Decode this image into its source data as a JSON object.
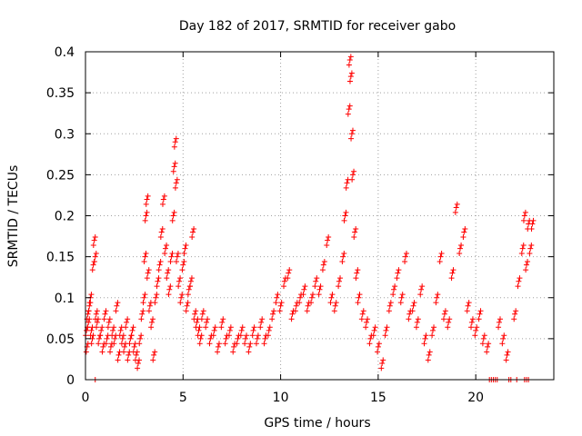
{
  "chart_data": {
    "type": "scatter",
    "title": "Day 182 of 2017, SRMTID for receiver gabo",
    "xlabel": "GPS time / hours",
    "ylabel": "SRMTID / TECUs",
    "xlim": [
      0,
      24
    ],
    "ylim": [
      0,
      0.4
    ],
    "xticks": [
      0,
      5,
      10,
      15,
      20
    ],
    "xtick_labels": [
      "0",
      "5",
      "10",
      "15",
      "20"
    ],
    "yticks": [
      0,
      0.05,
      0.1,
      0.15,
      0.2,
      0.25,
      0.3,
      0.35,
      0.4
    ],
    "ytick_labels": [
      "0",
      "0.05",
      "0.1",
      "0.15",
      "0.2",
      "0.25",
      "0.3",
      "0.35",
      "0.4"
    ],
    "grid": true,
    "marker": "+",
    "colors": {
      "series": "#ff0000",
      "grid": "#a0a0a0",
      "axis": "#000000"
    },
    "series": [
      {
        "name": "SRMTID",
        "points": [
          [
            0.05,
            0.06
          ],
          [
            0.08,
            0.04
          ],
          [
            0.12,
            0.08
          ],
          [
            0.15,
            0.07
          ],
          [
            0.2,
            0.09
          ],
          [
            0.25,
            0.1
          ],
          [
            0.3,
            0.06
          ],
          [
            0.35,
            0.05
          ],
          [
            0.4,
            0.14
          ],
          [
            0.45,
            0.17
          ],
          [
            0.5,
            0.15
          ],
          [
            0.55,
            0.08
          ],
          [
            0.6,
            0.07
          ],
          [
            0.7,
            0.05
          ],
          [
            0.8,
            0.06
          ],
          [
            0.9,
            0.04
          ],
          [
            1.0,
            0.08
          ],
          [
            1.1,
            0.05
          ],
          [
            1.2,
            0.07
          ],
          [
            1.3,
            0.04
          ],
          [
            1.4,
            0.06
          ],
          [
            1.5,
            0.05
          ],
          [
            1.6,
            0.09
          ],
          [
            1.7,
            0.03
          ],
          [
            1.8,
            0.06
          ],
          [
            1.9,
            0.05
          ],
          [
            2.0,
            0.04
          ],
          [
            2.1,
            0.07
          ],
          [
            2.2,
            0.03
          ],
          [
            2.3,
            0.05
          ],
          [
            2.4,
            0.06
          ],
          [
            2.5,
            0.04
          ],
          [
            2.6,
            0.03
          ],
          [
            2.7,
            0.02
          ],
          [
            2.8,
            0.05
          ],
          [
            2.9,
            0.08
          ],
          [
            3.0,
            0.1
          ],
          [
            3.05,
            0.15
          ],
          [
            3.1,
            0.2
          ],
          [
            3.15,
            0.22
          ],
          [
            3.2,
            0.13
          ],
          [
            3.3,
            0.09
          ],
          [
            3.4,
            0.07
          ],
          [
            3.5,
            0.03
          ],
          [
            3.6,
            0.1
          ],
          [
            3.7,
            0.12
          ],
          [
            3.8,
            0.14
          ],
          [
            3.9,
            0.18
          ],
          [
            4.0,
            0.22
          ],
          [
            4.1,
            0.16
          ],
          [
            4.2,
            0.13
          ],
          [
            4.3,
            0.11
          ],
          [
            4.4,
            0.15
          ],
          [
            4.5,
            0.2
          ],
          [
            4.55,
            0.26
          ],
          [
            4.6,
            0.29
          ],
          [
            4.65,
            0.24
          ],
          [
            4.7,
            0.15
          ],
          [
            4.8,
            0.12
          ],
          [
            4.9,
            0.1
          ],
          [
            5.0,
            0.14
          ],
          [
            5.1,
            0.16
          ],
          [
            5.2,
            0.09
          ],
          [
            5.3,
            0.11
          ],
          [
            5.4,
            0.12
          ],
          [
            5.5,
            0.18
          ],
          [
            5.6,
            0.08
          ],
          [
            5.7,
            0.07
          ],
          [
            5.8,
            0.06
          ],
          [
            5.9,
            0.05
          ],
          [
            6.0,
            0.08
          ],
          [
            6.2,
            0.07
          ],
          [
            6.4,
            0.05
          ],
          [
            6.6,
            0.06
          ],
          [
            6.8,
            0.04
          ],
          [
            7.0,
            0.07
          ],
          [
            7.2,
            0.05
          ],
          [
            7.4,
            0.06
          ],
          [
            7.6,
            0.04
          ],
          [
            7.8,
            0.05
          ],
          [
            8.0,
            0.06
          ],
          [
            8.2,
            0.05
          ],
          [
            8.4,
            0.04
          ],
          [
            8.6,
            0.06
          ],
          [
            8.8,
            0.05
          ],
          [
            9.0,
            0.07
          ],
          [
            9.2,
            0.05
          ],
          [
            9.4,
            0.06
          ],
          [
            9.6,
            0.08
          ],
          [
            9.8,
            0.1
          ],
          [
            10.0,
            0.09
          ],
          [
            10.2,
            0.12
          ],
          [
            10.4,
            0.13
          ],
          [
            10.6,
            0.08
          ],
          [
            10.8,
            0.09
          ],
          [
            11.0,
            0.1
          ],
          [
            11.2,
            0.11
          ],
          [
            11.4,
            0.09
          ],
          [
            11.6,
            0.1
          ],
          [
            11.8,
            0.12
          ],
          [
            12.0,
            0.11
          ],
          [
            12.2,
            0.14
          ],
          [
            12.4,
            0.17
          ],
          [
            12.6,
            0.1
          ],
          [
            12.8,
            0.09
          ],
          [
            13.0,
            0.12
          ],
          [
            13.2,
            0.15
          ],
          [
            13.3,
            0.2
          ],
          [
            13.4,
            0.24
          ],
          [
            13.5,
            0.33
          ],
          [
            13.55,
            0.39
          ],
          [
            13.6,
            0.37
          ],
          [
            13.65,
            0.3
          ],
          [
            13.7,
            0.25
          ],
          [
            13.8,
            0.18
          ],
          [
            13.9,
            0.13
          ],
          [
            14.0,
            0.1
          ],
          [
            14.2,
            0.08
          ],
          [
            14.4,
            0.07
          ],
          [
            14.6,
            0.05
          ],
          [
            14.8,
            0.06
          ],
          [
            15.0,
            0.04
          ],
          [
            15.2,
            0.02
          ],
          [
            15.4,
            0.06
          ],
          [
            15.6,
            0.09
          ],
          [
            15.8,
            0.11
          ],
          [
            16.0,
            0.13
          ],
          [
            16.2,
            0.1
          ],
          [
            16.4,
            0.15
          ],
          [
            16.6,
            0.08
          ],
          [
            16.8,
            0.09
          ],
          [
            17.0,
            0.07
          ],
          [
            17.2,
            0.11
          ],
          [
            17.4,
            0.05
          ],
          [
            17.6,
            0.03
          ],
          [
            17.8,
            0.06
          ],
          [
            18.0,
            0.1
          ],
          [
            18.2,
            0.15
          ],
          [
            18.4,
            0.08
          ],
          [
            18.6,
            0.07
          ],
          [
            18.8,
            0.13
          ],
          [
            19.0,
            0.21
          ],
          [
            19.2,
            0.16
          ],
          [
            19.4,
            0.18
          ],
          [
            19.6,
            0.09
          ],
          [
            19.8,
            0.07
          ],
          [
            20.0,
            0.06
          ],
          [
            20.2,
            0.08
          ],
          [
            20.4,
            0.05
          ],
          [
            20.6,
            0.04
          ],
          [
            21.2,
            0.07
          ],
          [
            21.4,
            0.05
          ],
          [
            21.6,
            0.03
          ],
          [
            22.0,
            0.08
          ],
          [
            22.2,
            0.12
          ],
          [
            22.4,
            0.16
          ],
          [
            22.5,
            0.2
          ],
          [
            22.6,
            0.14
          ],
          [
            22.7,
            0.19
          ],
          [
            22.8,
            0.16
          ],
          [
            22.9,
            0.19
          ]
        ]
      }
    ],
    "zero_markers_x": [
      0.5,
      20.7,
      20.8,
      20.9,
      21.0,
      21.1,
      21.7,
      21.8,
      22.1,
      22.5,
      22.6,
      22.7
    ]
  }
}
